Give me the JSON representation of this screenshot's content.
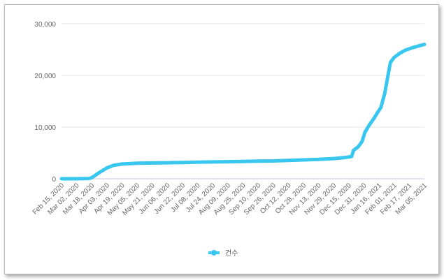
{
  "chart_data": {
    "type": "line",
    "series": [
      {
        "name": "건수",
        "color": "#39c7f0",
        "points": [
          [
            "Feb 15, 2020",
            0
          ],
          [
            "Mar 02, 2020",
            5
          ],
          [
            "Mar 15, 2020",
            50
          ],
          [
            "Mar 18, 2020",
            200
          ],
          [
            "Mar 25, 2020",
            1100
          ],
          [
            "Apr 03, 2020",
            2100
          ],
          [
            "Apr 10, 2020",
            2600
          ],
          [
            "Apr 19, 2020",
            2850
          ],
          [
            "May 05, 2020",
            3000
          ],
          [
            "May 21, 2020",
            3050
          ],
          [
            "Jun 06, 2020",
            3100
          ],
          [
            "Jun 22, 2020",
            3150
          ],
          [
            "Jul 08, 2020",
            3200
          ],
          [
            "Jul 24, 2020",
            3250
          ],
          [
            "Aug 09, 2020",
            3300
          ],
          [
            "Aug 25, 2020",
            3350
          ],
          [
            "Sep 10, 2020",
            3400
          ],
          [
            "Sep 26, 2020",
            3450
          ],
          [
            "Oct 12, 2020",
            3550
          ],
          [
            "Oct 28, 2020",
            3650
          ],
          [
            "Nov 13, 2020",
            3750
          ],
          [
            "Nov 29, 2020",
            3900
          ],
          [
            "Dec 10, 2020",
            4100
          ],
          [
            "Dec 18, 2020",
            4300
          ],
          [
            "Dec 20, 2020",
            5500
          ],
          [
            "Dec 25, 2020",
            6200
          ],
          [
            "Dec 29, 2020",
            7200
          ],
          [
            "Jan 01, 2021",
            9000
          ],
          [
            "Jan 06, 2021",
            10500
          ],
          [
            "Jan 11, 2021",
            11800
          ],
          [
            "Jan 14, 2021",
            12700
          ],
          [
            "Jan 18, 2021",
            13800
          ],
          [
            "Jan 22, 2021",
            16500
          ],
          [
            "Jan 28, 2021",
            22500
          ],
          [
            "Feb 01, 2021",
            23500
          ],
          [
            "Feb 07, 2021",
            24300
          ],
          [
            "Feb 13, 2021",
            24900
          ],
          [
            "Feb 21, 2021",
            25400
          ],
          [
            "Mar 01, 2021",
            25800
          ],
          [
            "Mar 05, 2021",
            26000
          ]
        ]
      }
    ],
    "x_tick_labels": [
      "Feb 15, 2020",
      "Mar 02, 2020",
      "Mar 18, 2020",
      "Apr 03, 2020",
      "Apr 19, 2020",
      "May 05, 2020",
      "May 21, 2020",
      "Jun 06, 2020",
      "Jun 22, 2020",
      "Jul 08, 2020",
      "Jul 24, 2020",
      "Aug 09, 2020",
      "Aug 25, 2020",
      "Sep 10, 2020",
      "Sep 26, 2020",
      "Oct 12, 2020",
      "Oct 28, 2020",
      "Nov 13, 2020",
      "Nov 29, 2020",
      "Dec 15, 2020",
      "Dec 31, 2020",
      "Jan 16, 2021",
      "Feb 01, 2021",
      "Feb 17, 2021",
      "Mar 05, 2021"
    ],
    "y_ticks": [
      0,
      10000,
      20000,
      30000
    ],
    "y_tick_labels": [
      "0",
      "10,000",
      "20,000",
      "30,000"
    ],
    "ylim": [
      0,
      30000
    ],
    "xlim": [
      "Feb 15, 2020",
      "Mar 05, 2021"
    ],
    "grid": "horizontal",
    "legend": "bottom-center",
    "title": "",
    "xlabel": "",
    "ylabel": ""
  }
}
